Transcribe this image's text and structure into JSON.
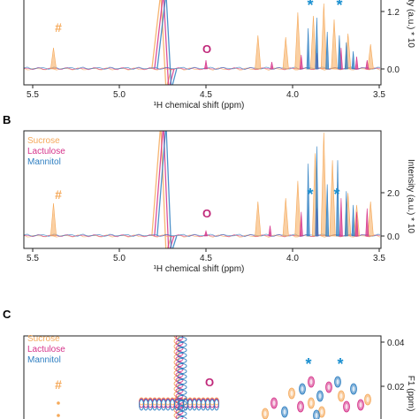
{
  "colors": {
    "sucrose": "#f5a95a",
    "lactulose": "#d6338a",
    "mannitol": "#2f7fc1",
    "marker_hash": "#f5a95a",
    "marker_o": "#c0287a",
    "marker_star": "#1a8fd0"
  },
  "panels": {
    "b": "B",
    "c": "C"
  },
  "legend": [
    "Sucrose",
    "Lactulose",
    "Mannitol"
  ],
  "markers": {
    "hash": "#",
    "o": "O",
    "star": "*"
  },
  "chart_data": [
    {
      "type": "line",
      "panel": "",
      "xlabel": "¹H chemical shift (ppm)",
      "ylabel": "Intensity (a.u.) * 10",
      "xlim": [
        5.55,
        3.48
      ],
      "ylim": [
        -0.2,
        1.9
      ],
      "x_ticks": [
        "5.5",
        "5.0",
        "4.5",
        "4.0",
        "3.5"
      ],
      "y_ticks": [
        "0.0",
        "1.2"
      ],
      "series": [
        {
          "key": "sucrose",
          "peaks": [
            [
              5.38,
              0.6
            ],
            [
              4.2,
              0.95
            ],
            [
              4.04,
              0.9
            ],
            [
              3.97,
              1.6
            ],
            [
              3.88,
              1.5
            ],
            [
              3.82,
              1.85
            ],
            [
              3.76,
              1.4
            ],
            [
              3.68,
              1.0
            ],
            [
              3.55,
              0.7
            ],
            [
              3.47,
              0.5
            ]
          ]
        },
        {
          "key": "lactulose",
          "peaks": [
            [
              4.5,
              0.25
            ],
            [
              4.12,
              0.2
            ],
            [
              3.95,
              0.4
            ],
            [
              3.86,
              0.45
            ],
            [
              3.72,
              0.6
            ],
            [
              3.63,
              0.35
            ],
            [
              3.57,
              0.25
            ]
          ]
        },
        {
          "key": "mannitol",
          "peaks": [
            [
              3.91,
              1.15
            ],
            [
              3.86,
              1.45
            ],
            [
              3.8,
              1.05
            ],
            [
              3.73,
              0.95
            ],
            [
              3.69,
              0.75
            ],
            [
              3.65,
              0.5
            ]
          ]
        }
      ]
    },
    {
      "type": "line",
      "panel": "B",
      "xlabel": "¹H chemical shift (ppm)",
      "ylabel": "Intensity (a.u.) * 10",
      "xlim": [
        5.55,
        3.48
      ],
      "ylim": [
        -0.2,
        3.0
      ],
      "x_ticks": [
        "5.5",
        "5.0",
        "4.5",
        "4.0",
        "3.5"
      ],
      "y_ticks": [
        "0.0",
        "2.0"
      ],
      "series": [
        {
          "key": "sucrose",
          "peaks": [
            [
              5.38,
              0.95
            ],
            [
              4.2,
              1.0
            ],
            [
              4.04,
              1.1
            ],
            [
              3.97,
              1.6
            ],
            [
              3.87,
              2.4
            ],
            [
              3.82,
              3.0
            ],
            [
              3.77,
              2.2
            ],
            [
              3.68,
              1.25
            ],
            [
              3.63,
              0.9
            ],
            [
              3.55,
              1.0
            ],
            [
              3.47,
              0.8
            ]
          ]
        },
        {
          "key": "lactulose",
          "peaks": [
            [
              4.5,
              0.15
            ],
            [
              4.13,
              0.3
            ],
            [
              3.95,
              0.7
            ],
            [
              3.86,
              0.8
            ],
            [
              3.72,
              1.1
            ],
            [
              3.63,
              0.7
            ],
            [
              3.57,
              0.8
            ]
          ]
        },
        {
          "key": "mannitol",
          "peaks": [
            [
              3.91,
              2.1
            ],
            [
              3.86,
              2.6
            ],
            [
              3.8,
              1.5
            ],
            [
              3.74,
              2.2
            ],
            [
              3.69,
              1.3
            ],
            [
              3.65,
              0.9
            ]
          ]
        }
      ]
    },
    {
      "type": "scatter",
      "panel": "C",
      "ylabel": "F1 (ppm)",
      "y_ticks": [
        "0.04",
        "0.02"
      ],
      "series": [
        {
          "key": "sucrose"
        },
        {
          "key": "lactulose"
        },
        {
          "key": "mannitol"
        }
      ]
    }
  ]
}
